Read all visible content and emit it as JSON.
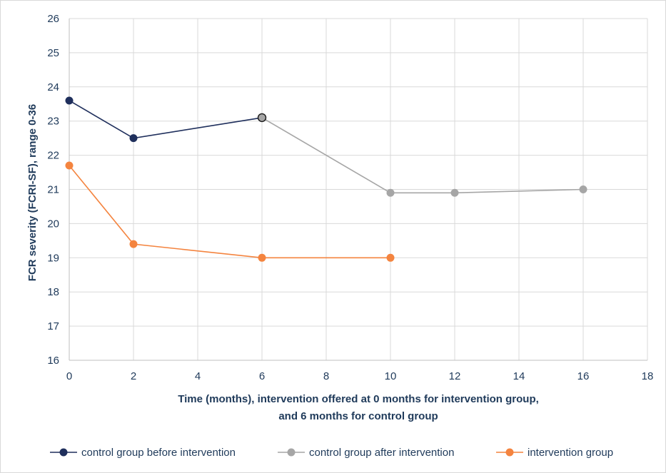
{
  "chart_data": {
    "type": "line",
    "title": "",
    "xlabel_lines": [
      "Time (months), intervention offered at 0 months for intervention group,",
      "and 6 months for control group"
    ],
    "ylabel": "FCR severity (FCRI-SF), range 0-36",
    "xlim": [
      0,
      18
    ],
    "ylim": [
      16,
      26
    ],
    "x_ticks": [
      "0",
      "2",
      "4",
      "6",
      "8",
      "10",
      "12",
      "14",
      "16",
      "18"
    ],
    "y_ticks": [
      "16",
      "17",
      "18",
      "19",
      "20",
      "21",
      "22",
      "23",
      "24",
      "25",
      "26"
    ],
    "grid": true,
    "legend_position": "bottom",
    "series": [
      {
        "name": "control group before intervention",
        "color": "#1f2f5c",
        "x": [
          0,
          2,
          6
        ],
        "y": [
          23.6,
          22.5,
          23.1
        ]
      },
      {
        "name": "control group after intervention",
        "color": "#a6a6a6",
        "x": [
          6,
          10,
          12,
          16
        ],
        "y": [
          23.1,
          20.9,
          20.9,
          21.0
        ]
      },
      {
        "name": "intervention group",
        "color": "#f4843f",
        "x": [
          0,
          2,
          6,
          10
        ],
        "y": [
          21.7,
          19.4,
          19.0,
          19.0
        ]
      }
    ]
  }
}
